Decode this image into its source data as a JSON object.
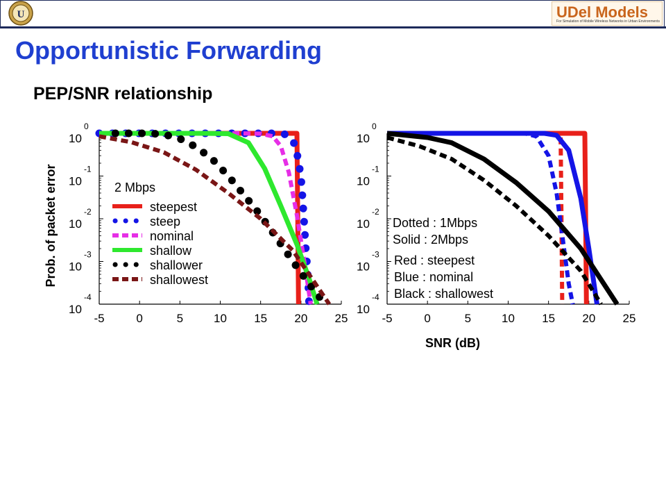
{
  "header": {
    "logo_text": "UDel Models",
    "logo_tagline": "For Simulation of Mobile Wireless Networks in Urban Environments"
  },
  "title": "Opportunistic Forwarding",
  "subtitle": "PEP/SNR relationship",
  "colors": {
    "title": "#1f3fd0",
    "red": "#e8201a",
    "blue": "#1414e6",
    "magenta": "#e62ee6",
    "green": "#2ee82e",
    "black": "#000000",
    "brown": "#7a1616"
  },
  "chart_data": [
    {
      "type": "line",
      "xlabel": "",
      "ylabel": "Prob. of packet error",
      "log_y": true,
      "xlim": [
        -5,
        25
      ],
      "ylim": [
        0.0001,
        1
      ],
      "x_ticks": [
        "-5",
        "0",
        "5",
        "10",
        "15",
        "20",
        "25"
      ],
      "y_ticks": [
        {
          "base": "10",
          "exp": "0"
        },
        {
          "base": "10",
          "exp": "-1"
        },
        {
          "base": "10",
          "exp": "-2"
        },
        {
          "base": "10",
          "exp": "-3"
        },
        {
          "base": "10",
          "exp": "-4"
        }
      ],
      "annotation": "2 Mbps",
      "legend_position": "lower-left",
      "series": [
        {
          "name": "steepest",
          "color": "#e8201a",
          "style": "solid",
          "x": [
            -5,
            19.5,
            19.6,
            19.7
          ],
          "y": [
            1,
            1,
            0.01,
            0.0001
          ]
        },
        {
          "name": "steep",
          "color": "#1414e6",
          "style": "dots",
          "x": [
            -5,
            -3,
            -1,
            1,
            3,
            5,
            7,
            9,
            11,
            13,
            15,
            17,
            18,
            19,
            19.5,
            20,
            20.2,
            20.4,
            20.6,
            20.8,
            20.9,
            21
          ],
          "y": [
            1,
            1,
            1,
            1,
            1,
            1,
            1,
            1,
            1,
            1,
            1,
            1,
            0.95,
            0.7,
            0.35,
            0.1,
            0.03,
            0.008,
            0.002,
            0.0007,
            0.0003,
            0.0001
          ]
        },
        {
          "name": "nominal",
          "color": "#e62ee6",
          "style": "dash",
          "x": [
            -5,
            12,
            15,
            16.5,
            17.5,
            18.5,
            19.5,
            20.5,
            21.2
          ],
          "y": [
            1,
            1,
            0.98,
            0.85,
            0.5,
            0.12,
            0.012,
            0.0008,
            0.0001
          ]
        },
        {
          "name": "shallow",
          "color": "#2ee82e",
          "style": "solid",
          "x": [
            -5,
            8,
            11,
            13.5,
            15.5,
            17.5,
            19.5,
            21,
            22
          ],
          "y": [
            1,
            1,
            0.98,
            0.6,
            0.15,
            0.02,
            0.0025,
            0.0004,
            0.0001
          ]
        },
        {
          "name": "shallower",
          "color": "#000000",
          "style": "dots",
          "x": [
            -3,
            -1,
            1,
            3,
            5,
            7,
            9,
            11,
            13,
            15,
            17,
            19,
            21,
            23
          ],
          "y": [
            1,
            1,
            1,
            0.95,
            0.75,
            0.48,
            0.25,
            0.1,
            0.035,
            0.012,
            0.0035,
            0.001,
            0.0003,
            0.0001
          ]
        },
        {
          "name": "shallowest",
          "color": "#7a1616",
          "style": "dash",
          "x": [
            -5,
            -1,
            3,
            7,
            11,
            15,
            19,
            23.5
          ],
          "y": [
            0.85,
            0.62,
            0.36,
            0.14,
            0.04,
            0.01,
            0.0018,
            0.0001
          ]
        }
      ]
    },
    {
      "type": "line",
      "xlabel": "SNR (dB)",
      "ylabel": "",
      "log_y": true,
      "xlim": [
        -5,
        25
      ],
      "ylim": [
        0.0001,
        1
      ],
      "x_ticks": [
        "-5",
        "0",
        "5",
        "10",
        "15",
        "20",
        "25"
      ],
      "y_ticks": [
        {
          "base": "10",
          "exp": "0"
        },
        {
          "base": "10",
          "exp": "-1"
        },
        {
          "base": "10",
          "exp": "-2"
        },
        {
          "base": "10",
          "exp": "-3"
        },
        {
          "base": "10",
          "exp": "-4"
        }
      ],
      "annotations": [
        "Dotted : 1Mbps",
        "Solid : 2Mbps",
        "Red : steepest",
        "Blue : nominal",
        "Black : shallowest"
      ],
      "series": [
        {
          "color": "#e8201a",
          "style": "solid",
          "x": [
            -5,
            19.5,
            19.6,
            19.7
          ],
          "y": [
            1,
            1,
            0.01,
            0.0001
          ]
        },
        {
          "color": "#e8201a",
          "style": "dash",
          "x": [
            -5,
            16.5,
            16.6,
            16.7
          ],
          "y": [
            1,
            1,
            0.01,
            0.0001
          ]
        },
        {
          "color": "#1414e6",
          "style": "solid",
          "x": [
            -5,
            14.5,
            16,
            17.5,
            19,
            20,
            21
          ],
          "y": [
            1,
            1,
            0.9,
            0.4,
            0.03,
            0.002,
            0.0001
          ]
        },
        {
          "color": "#1414e6",
          "style": "dash",
          "x": [
            -5,
            12,
            13.5,
            15,
            16,
            16.8,
            17.5,
            18
          ],
          "y": [
            1,
            1,
            0.85,
            0.3,
            0.04,
            0.003,
            0.0003,
            0.0001
          ]
        },
        {
          "color": "#000000",
          "style": "solid",
          "x": [
            -5,
            0,
            3,
            7,
            11,
            15,
            19,
            23.5
          ],
          "y": [
            1,
            0.8,
            0.6,
            0.25,
            0.07,
            0.015,
            0.002,
            0.0001
          ]
        },
        {
          "color": "#000000",
          "style": "dash",
          "x": [
            -5,
            -1,
            3,
            7,
            11,
            15,
            19,
            21.5
          ],
          "y": [
            0.8,
            0.5,
            0.25,
            0.08,
            0.02,
            0.004,
            0.0006,
            0.0001
          ]
        }
      ]
    }
  ]
}
